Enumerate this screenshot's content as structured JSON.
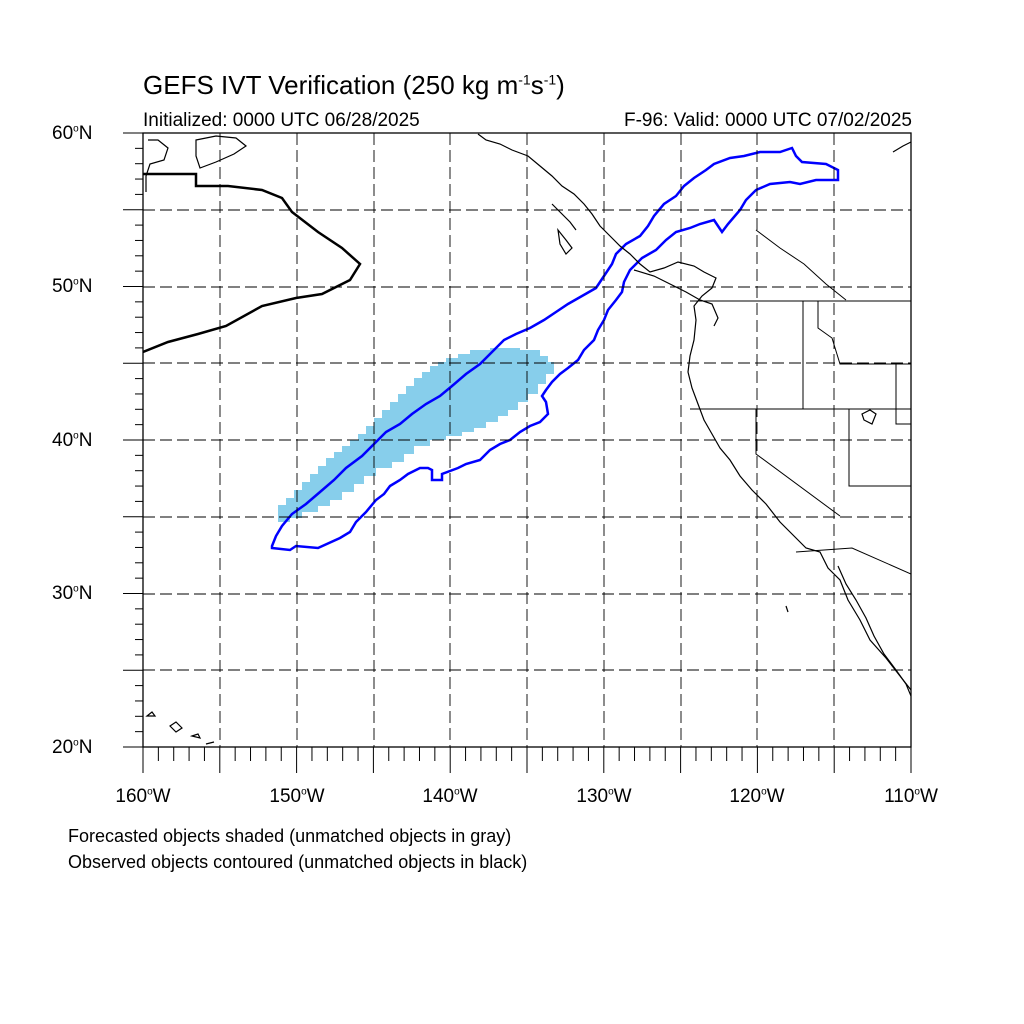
{
  "title": {
    "prefix": "GEFS IVT Verification (250 kg m",
    "sup1": "-1",
    "mid": "s",
    "sup2": "-1",
    "suffix": ")"
  },
  "initialized": "Initialized: 0000 UTC 06/28/2025",
  "valid": "F-96: Valid: 0000 UTC 07/02/2025",
  "lat_labels": [
    "60",
    "50",
    "40",
    "30",
    "20"
  ],
  "lat_suffix": "N",
  "lon_labels": [
    "160",
    "150",
    "140",
    "130",
    "120",
    "110"
  ],
  "lon_suffix": "W",
  "degree_symbol": "o",
  "footnotes": {
    "line1": "Forecasted objects shaded (unmatched objects in gray)",
    "line2": "Observed objects contoured (unmatched objects in black)"
  },
  "colors": {
    "forecast_fill": "#87ceeb",
    "observed_matched": "#0000ff",
    "observed_unmatched": "#000000",
    "grid": "#000000"
  },
  "map_extent": {
    "lon_min": -160,
    "lon_max": -110,
    "lat_min": 20,
    "lat_max": 60
  }
}
